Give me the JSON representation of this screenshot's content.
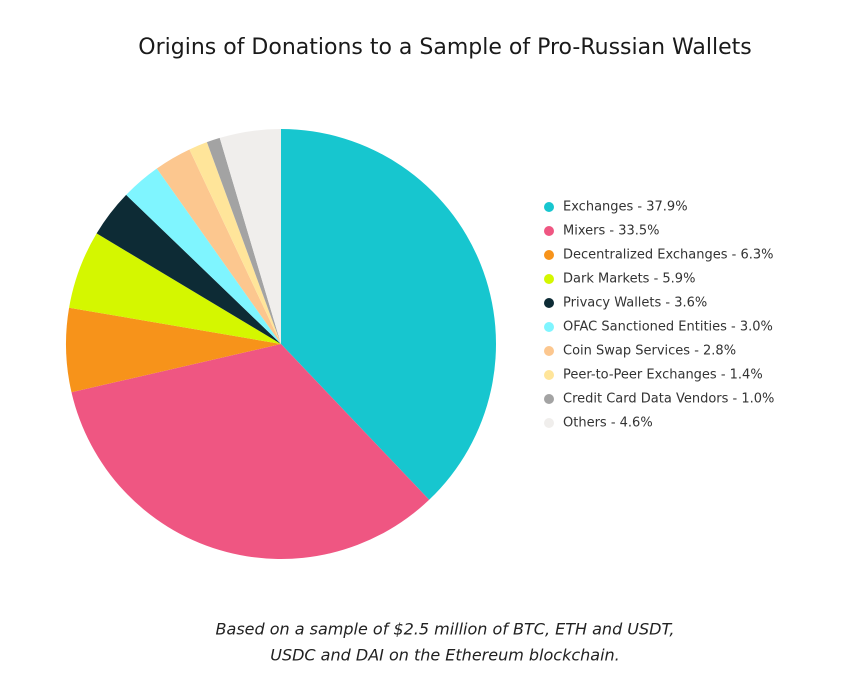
{
  "chart_data": {
    "type": "pie",
    "title": "Origins of Donations to a Sample of Pro-Russian Wallets",
    "categories": [
      "Exchanges - 37.9%",
      "Mixers - 33.5%",
      "Decentralized Exchanges - 6.3%",
      "Dark Markets - 5.9%",
      "Privacy Wallets - 3.6%",
      "OFAC Sanctioned Entities - 3.0%",
      "Coin Swap Services - 2.8%",
      "Peer-to-Peer Exchanges - 1.4%",
      "Credit Card Data Vendors - 1.0%",
      "Others - 4.6%"
    ],
    "values": [
      37.9,
      33.5,
      6.3,
      5.9,
      3.6,
      3.0,
      2.8,
      1.4,
      1.0,
      4.6
    ],
    "colors": [
      "#17c6cf",
      "#ef5682",
      "#f7931a",
      "#d4f700",
      "#0d2b35",
      "#7ff5ff",
      "#fcc78f",
      "#ffe59a",
      "#a3a3a3",
      "#f0eeec"
    ],
    "legend": "right",
    "caption": [
      "Based on a sample of $2.5 million of BTC, ETH and USDT,",
      "USDC and DAI on the Ethereum blockchain."
    ]
  }
}
